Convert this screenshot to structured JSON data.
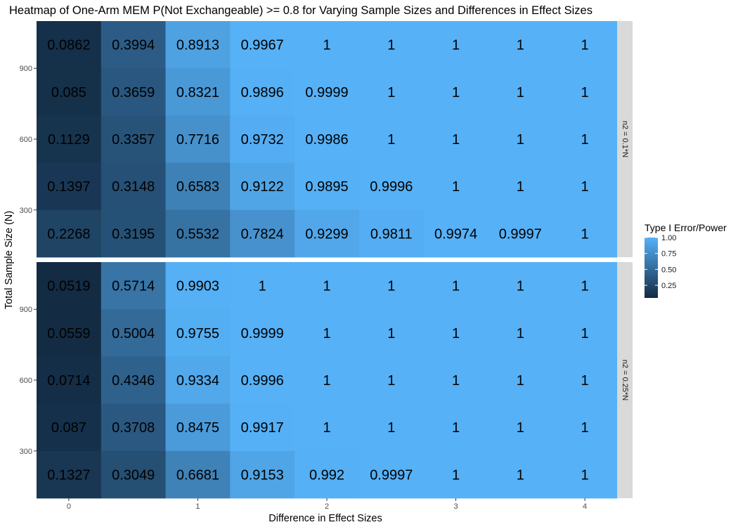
{
  "chart_data": {
    "type": "heatmap",
    "title": "Heatmap of One-Arm MEM P(Not Exchangeable) >= 0.8 for Varying Sample Sizes and Differences in Effect Sizes",
    "xlabel": "Difference in Effect Sizes",
    "ylabel": "Total Sample Size (N)",
    "x": [
      0,
      0.5,
      1,
      1.5,
      2,
      2.5,
      3,
      3.5,
      4
    ],
    "x_ticks": [
      "0",
      "1",
      "2",
      "3",
      "4"
    ],
    "xlim": [
      -0.25,
      4.25
    ],
    "y": [
      200,
      400,
      600,
      800,
      1000
    ],
    "y_ticks": [
      "300",
      "600",
      "900"
    ],
    "ylim": [
      100,
      1100
    ],
    "legend": {
      "title": "Type I Error/Power",
      "ticks": [
        "0.25",
        "0.50",
        "0.75",
        "1.00"
      ],
      "range": [
        0.0519,
        1
      ],
      "low_color": "#132B43",
      "high_color": "#56B1F7",
      "placement": "right"
    },
    "panel_background": "#EBEBEB",
    "strip_background": "#D9D9D9",
    "grid": true,
    "panels": [
      {
        "strip": "n2 = 0.1*N",
        "rows": [
          {
            "n": 1000,
            "values": [
              "0.0862",
              "0.3994",
              "0.8913",
              "0.9967",
              "1",
              "1",
              "1",
              "1",
              "1"
            ]
          },
          {
            "n": 800,
            "values": [
              "0.085",
              "0.3659",
              "0.8321",
              "0.9896",
              "0.9999",
              "1",
              "1",
              "1",
              "1"
            ]
          },
          {
            "n": 600,
            "values": [
              "0.1129",
              "0.3357",
              "0.7716",
              "0.9732",
              "0.9986",
              "1",
              "1",
              "1",
              "1"
            ]
          },
          {
            "n": 400,
            "values": [
              "0.1397",
              "0.3148",
              "0.6583",
              "0.9122",
              "0.9895",
              "0.9996",
              "1",
              "1",
              "1"
            ]
          },
          {
            "n": 200,
            "values": [
              "0.2268",
              "0.3195",
              "0.5532",
              "0.7824",
              "0.9299",
              "0.9811",
              "0.9974",
              "0.9997",
              "1"
            ]
          }
        ]
      },
      {
        "strip": "n2 = 0.25*N",
        "rows": [
          {
            "n": 1000,
            "values": [
              "0.0519",
              "0.5714",
              "0.9903",
              "1",
              "1",
              "1",
              "1",
              "1",
              "1"
            ]
          },
          {
            "n": 800,
            "values": [
              "0.0559",
              "0.5004",
              "0.9755",
              "0.9999",
              "1",
              "1",
              "1",
              "1",
              "1"
            ]
          },
          {
            "n": 600,
            "values": [
              "0.0714",
              "0.4346",
              "0.9334",
              "0.9996",
              "1",
              "1",
              "1",
              "1",
              "1"
            ]
          },
          {
            "n": 400,
            "values": [
              "0.087",
              "0.3708",
              "0.8475",
              "0.9917",
              "1",
              "1",
              "1",
              "1",
              "1"
            ]
          },
          {
            "n": 200,
            "values": [
              "0.1327",
              "0.3049",
              "0.6681",
              "0.9153",
              "0.992",
              "0.9997",
              "1",
              "1",
              "1"
            ]
          }
        ]
      }
    ]
  }
}
